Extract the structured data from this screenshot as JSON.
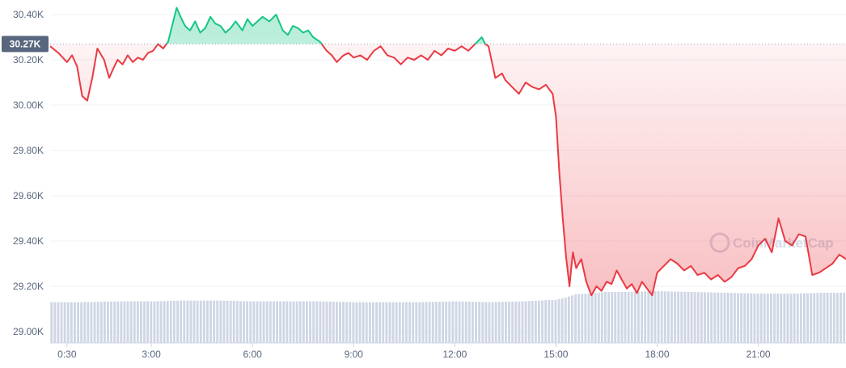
{
  "chart_data": {
    "type": "area",
    "y_ticks": [
      "30.40K",
      "30.20K",
      "30.00K",
      "29.80K",
      "29.60K",
      "29.40K",
      "29.20K",
      "29.00K"
    ],
    "x_ticks": [
      "0:30",
      "3:00",
      "6:00",
      "9:00",
      "12:00",
      "15:00",
      "18:00",
      "21:00"
    ],
    "ylim": [
      28.95,
      30.45
    ],
    "x_range_hours": [
      0.0,
      23.6
    ],
    "baseline_value": 30.27,
    "baseline_label": "30.27K",
    "watermark": "CoinMarketCap",
    "grid": true,
    "colors": {
      "above": "#16c784",
      "below": "#ea3943",
      "baseline_tag": "#58667e",
      "volume": "#cfd6e4",
      "grid": "#eff2f5"
    },
    "series": [
      {
        "x": [
          0.0,
          0.25,
          0.5,
          0.65,
          0.8,
          0.95,
          1.1,
          1.25,
          1.4,
          1.6,
          1.75,
          1.9,
          2.0,
          2.15,
          2.3,
          2.45,
          2.6,
          2.75,
          2.9,
          3.05,
          3.2,
          3.35,
          3.5,
          3.6,
          3.75,
          3.9,
          4.0,
          4.15,
          4.3,
          4.45,
          4.6,
          4.75,
          4.9,
          5.05,
          5.2,
          5.35,
          5.5,
          5.7,
          5.85,
          6.0,
          6.15,
          6.3,
          6.5,
          6.7,
          6.9,
          7.05,
          7.2,
          7.35,
          7.5,
          7.65,
          7.8,
          8.0,
          8.2,
          8.35,
          8.5,
          8.7,
          8.85,
          9.0,
          9.2,
          9.4,
          9.6,
          9.8,
          10.0,
          10.2,
          10.4,
          10.6,
          10.8,
          11.0,
          11.2,
          11.4,
          11.6,
          11.8,
          12.0,
          12.2,
          12.4,
          12.6,
          12.8,
          12.9,
          13.0,
          13.2,
          13.4,
          13.5,
          13.7,
          13.9,
          14.1,
          14.3,
          14.5,
          14.7,
          14.9,
          15.0,
          15.1,
          15.2,
          15.3,
          15.4,
          15.5,
          15.6,
          15.75,
          15.9,
          16.05,
          16.2,
          16.35,
          16.5,
          16.65,
          16.8,
          16.95,
          17.1,
          17.25,
          17.4,
          17.55,
          17.7,
          17.85,
          18.0,
          18.2,
          18.4,
          18.6,
          18.8,
          19.0,
          19.2,
          19.4,
          19.6,
          19.8,
          20.0,
          20.2,
          20.4,
          20.6,
          20.8,
          21.0,
          21.2,
          21.4,
          21.6,
          21.8,
          22.0,
          22.2,
          22.4,
          22.6,
          22.8,
          23.0,
          23.2,
          23.4,
          23.6
        ],
        "y": [
          30.26,
          30.23,
          30.19,
          30.22,
          30.17,
          30.04,
          30.02,
          30.12,
          30.25,
          30.2,
          30.12,
          30.17,
          30.2,
          30.18,
          30.22,
          30.19,
          30.21,
          30.2,
          30.23,
          30.24,
          30.27,
          30.25,
          30.28,
          30.34,
          30.43,
          30.38,
          30.35,
          30.33,
          30.37,
          30.32,
          30.34,
          30.39,
          30.36,
          30.35,
          30.32,
          30.34,
          30.37,
          30.33,
          30.38,
          30.35,
          30.37,
          30.39,
          30.37,
          30.4,
          30.33,
          30.31,
          30.35,
          30.34,
          30.32,
          30.33,
          30.3,
          30.28,
          30.24,
          30.22,
          30.19,
          30.22,
          30.23,
          30.21,
          30.22,
          30.2,
          30.24,
          30.26,
          30.22,
          30.21,
          30.18,
          30.21,
          30.2,
          30.22,
          30.2,
          30.24,
          30.22,
          30.25,
          30.24,
          30.26,
          30.24,
          30.27,
          30.3,
          30.27,
          30.26,
          30.12,
          30.14,
          30.11,
          30.08,
          30.05,
          30.1,
          30.08,
          30.07,
          30.09,
          30.05,
          29.95,
          29.7,
          29.5,
          29.33,
          29.2,
          29.35,
          29.28,
          29.32,
          29.22,
          29.16,
          29.2,
          29.18,
          29.22,
          29.21,
          29.27,
          29.23,
          29.19,
          29.21,
          29.17,
          29.22,
          29.19,
          29.16,
          29.26,
          29.29,
          29.32,
          29.3,
          29.27,
          29.29,
          29.25,
          29.26,
          29.23,
          29.25,
          29.22,
          29.24,
          29.28,
          29.29,
          29.32,
          29.38,
          29.41,
          29.35,
          29.5,
          29.4,
          29.38,
          29.43,
          29.42,
          29.25,
          29.26,
          29.28,
          29.3,
          29.34,
          29.32
        ]
      }
    ],
    "volume": {
      "x": [
        0.0,
        1.0,
        2.0,
        3.0,
        4.0,
        5.0,
        6.0,
        7.0,
        8.0,
        9.0,
        10.0,
        11.0,
        12.0,
        13.0,
        14.0,
        15.0,
        15.3,
        15.6,
        16.0,
        16.5,
        17.0,
        18.0,
        19.0,
        20.0,
        21.0,
        22.0,
        23.0,
        23.6
      ],
      "level": [
        0.52,
        0.52,
        0.53,
        0.53,
        0.54,
        0.54,
        0.53,
        0.53,
        0.53,
        0.52,
        0.52,
        0.52,
        0.53,
        0.52,
        0.53,
        0.55,
        0.58,
        0.62,
        0.63,
        0.65,
        0.65,
        0.66,
        0.65,
        0.64,
        0.63,
        0.63,
        0.64,
        0.64
      ]
    }
  }
}
